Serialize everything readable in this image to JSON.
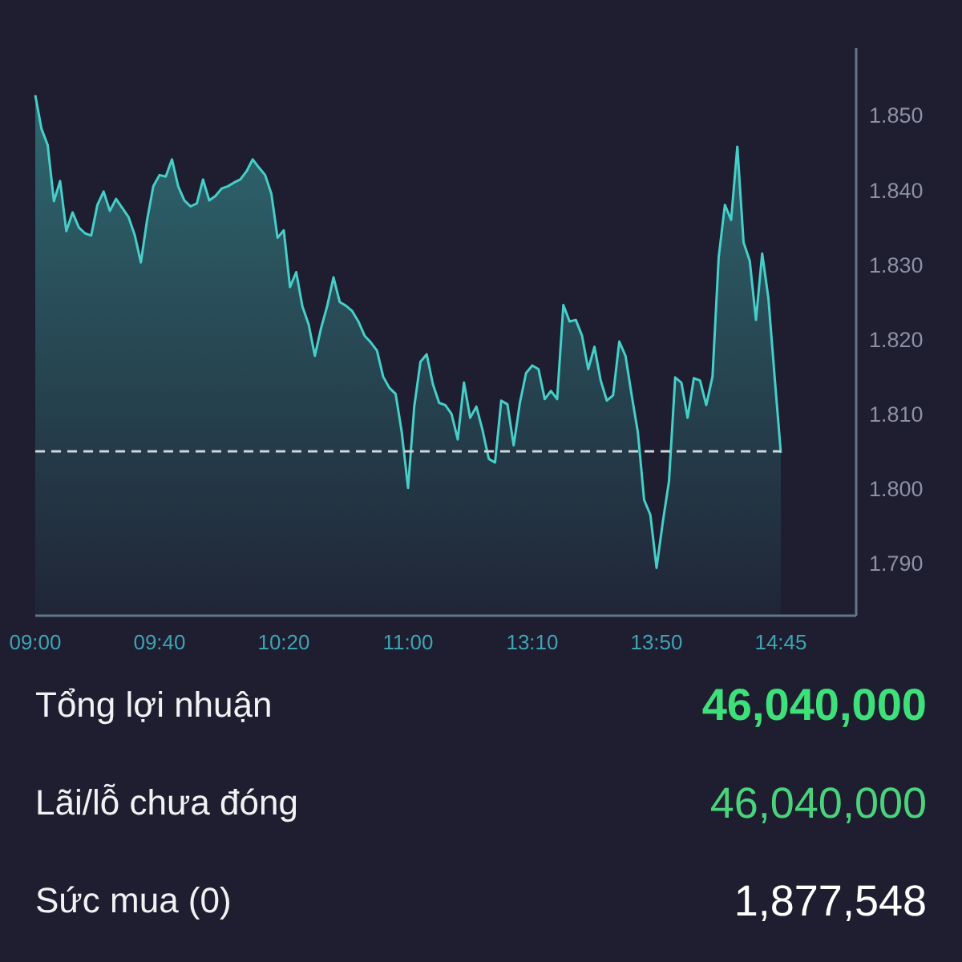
{
  "chart_data": {
    "type": "area",
    "categories": [
      "09:00",
      null,
      null,
      null,
      null,
      null,
      null,
      null,
      null,
      null,
      null,
      null,
      null,
      null,
      null,
      null,
      null,
      null,
      null,
      null,
      "09:40",
      null,
      null,
      null,
      null,
      null,
      null,
      null,
      null,
      null,
      null,
      null,
      null,
      null,
      null,
      null,
      null,
      null,
      null,
      null,
      "10:20",
      null,
      null,
      null,
      null,
      null,
      null,
      null,
      null,
      null,
      null,
      null,
      null,
      null,
      null,
      null,
      null,
      null,
      null,
      null,
      "11:00",
      null,
      null,
      null,
      null,
      null,
      null,
      null,
      null,
      null,
      null,
      null,
      null,
      null,
      null,
      null,
      null,
      null,
      null,
      null,
      "13:10",
      null,
      null,
      null,
      null,
      null,
      null,
      null,
      null,
      null,
      null,
      null,
      null,
      null,
      null,
      null,
      null,
      null,
      null,
      null,
      "13:50",
      null,
      null,
      null,
      null,
      null,
      null,
      null,
      null,
      null,
      null,
      null,
      null,
      null,
      null,
      null,
      null,
      null,
      null,
      null,
      "14:45"
    ],
    "series": [
      {
        "color": "#45cfc8",
        "values": [
          1.8527,
          1.8482,
          1.846,
          1.8385,
          1.8412,
          1.8345,
          1.837,
          1.835,
          1.8342,
          1.8339,
          1.838,
          1.8398,
          1.8372,
          1.8388,
          1.8376,
          1.8364,
          1.834,
          1.8303,
          1.836,
          1.8405,
          1.842,
          1.8418,
          1.8441,
          1.8405,
          1.8386,
          1.8378,
          1.8382,
          1.8414,
          1.8386,
          1.8392,
          1.8402,
          1.8405,
          1.841,
          1.8414,
          1.8425,
          1.8441,
          1.843,
          1.842,
          1.8395,
          1.8336,
          1.8346,
          1.827,
          1.829,
          1.8244,
          1.822,
          1.8178,
          1.8215,
          1.8245,
          1.8283,
          1.825,
          1.8245,
          1.8238,
          1.8224,
          1.8205,
          1.8196,
          1.8185,
          1.815,
          1.8135,
          1.8127,
          1.8075,
          1.8001,
          1.811,
          1.817,
          1.818,
          1.814,
          1.8115,
          1.8112,
          1.81,
          1.8066,
          1.8142,
          1.8095,
          1.811,
          1.8078,
          1.804,
          1.8035,
          1.8118,
          1.8113,
          1.8058,
          1.8115,
          1.8155,
          1.8165,
          1.816,
          1.812,
          1.8131,
          1.812,
          1.8246,
          1.8224,
          1.8226,
          1.8205,
          1.816,
          1.819,
          1.8145,
          1.8118,
          1.8125,
          1.8197,
          1.8178,
          1.8125,
          1.8075,
          1.7985,
          1.7965,
          1.7894,
          1.7955,
          1.801,
          1.8149,
          1.8142,
          1.8095,
          1.8148,
          1.8145,
          1.8112,
          1.815,
          1.831,
          1.838,
          1.836,
          1.8458,
          1.833,
          1.8305,
          1.8226,
          1.8315,
          1.8255,
          1.815,
          1.8048
        ]
      }
    ],
    "ylim": [
      1.783,
      1.859
    ],
    "yticks": [
      {
        "value": 1.79,
        "label": "1.790"
      },
      {
        "value": 1.8,
        "label": "1.800"
      },
      {
        "value": 1.81,
        "label": "1.810"
      },
      {
        "value": 1.82,
        "label": "1.820"
      },
      {
        "value": 1.83,
        "label": "1.830"
      },
      {
        "value": 1.84,
        "label": "1.840"
      },
      {
        "value": 1.85,
        "label": "1.850"
      }
    ],
    "ref_lines": [
      {
        "axis": "y",
        "value": 1.805,
        "color": "#cfd6da",
        "line_style": "dashed"
      }
    ],
    "annotations": [
      "Tổng lợi nhuận",
      "46,040,000",
      "Lãi/lỗ chưa đóng",
      "46,040,000",
      "Sức mua (0)",
      "1,877,548"
    ]
  }
}
